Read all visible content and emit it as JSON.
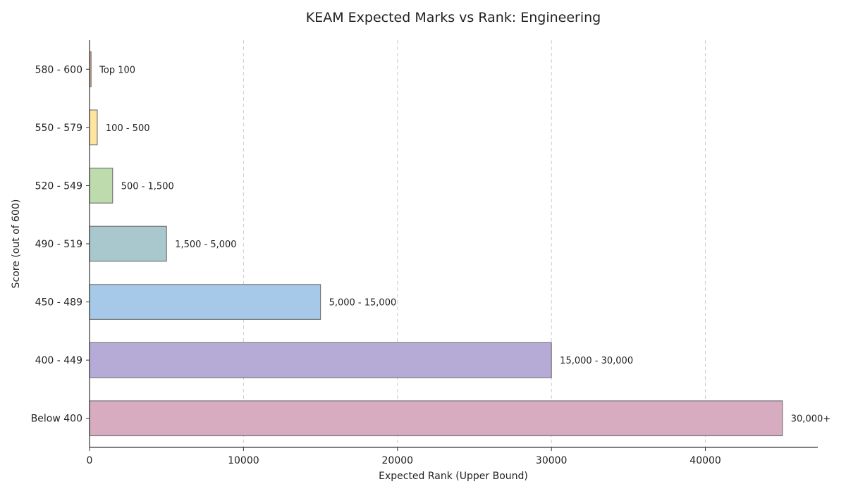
{
  "chart_data": {
    "type": "bar",
    "orientation": "horizontal",
    "title": "KEAM Expected Marks vs Rank: Engineering",
    "xlabel": "Expected Rank (Upper Bound)",
    "ylabel": "Score (out of 600)",
    "xlim": [
      0,
      47300
    ],
    "xticks": [
      0,
      10000,
      20000,
      30000,
      40000
    ],
    "grid": "x-dashed",
    "categories": [
      "580 - 600",
      "550 - 579",
      "520 - 549",
      "490 - 519",
      "450 - 489",
      "400 - 449",
      "Below 400"
    ],
    "values": [
      100,
      500,
      1500,
      5000,
      15000,
      30000,
      45000
    ],
    "data_labels": [
      "Top 100",
      "100 - 500",
      "500 - 1,500",
      "1,500 - 5,000",
      "5,000 - 15,000",
      "15,000 - 30,000",
      "30,000+"
    ],
    "colors": [
      "#e3a77e",
      "#fde49b",
      "#b9d9a8",
      "#a3c5cb",
      "#a1c6e8",
      "#b2a7d5",
      "#d5a7bd"
    ]
  }
}
